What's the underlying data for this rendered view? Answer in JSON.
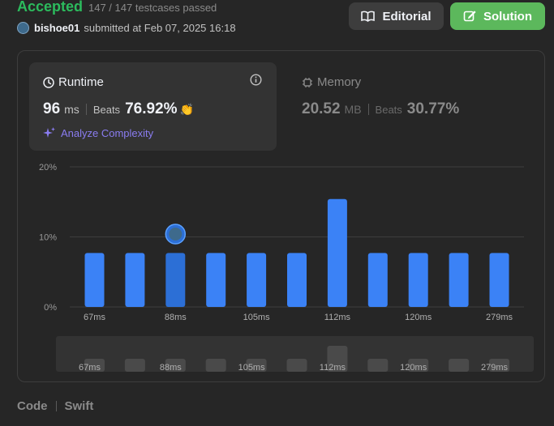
{
  "header": {
    "status": "Accepted",
    "tests": "147 / 147 testcases passed",
    "username": "bishoe01",
    "submitted": "submitted at Feb 07, 2025 16:18",
    "editorial_label": "Editorial",
    "solution_label": "Solution"
  },
  "runtime": {
    "title": "Runtime",
    "value": "96",
    "unit": "ms",
    "beats_label": "Beats",
    "beats_value": "76.92%",
    "analyze_label": "Analyze Complexity"
  },
  "memory": {
    "title": "Memory",
    "value": "20.52",
    "unit": "MB",
    "beats_label": "Beats",
    "beats_value": "30.77%"
  },
  "chart_data": {
    "type": "bar",
    "categories": [
      "67ms",
      "",
      "88ms",
      "",
      "105ms",
      "",
      "112ms",
      "",
      "120ms",
      "",
      "279ms"
    ],
    "values": [
      7.7,
      7.7,
      7.7,
      7.7,
      7.7,
      7.7,
      15.4,
      7.7,
      7.7,
      7.7,
      7.7
    ],
    "y_ticks": [
      "0%",
      "10%",
      "20%"
    ],
    "ylim": [
      0,
      20
    ],
    "highlight_index": 2,
    "colors": {
      "bar": "#3b82f6",
      "highlight": "#2c6fd6",
      "grid": "#3d3d3d"
    }
  },
  "code": {
    "label": "Code",
    "language": "Swift"
  }
}
